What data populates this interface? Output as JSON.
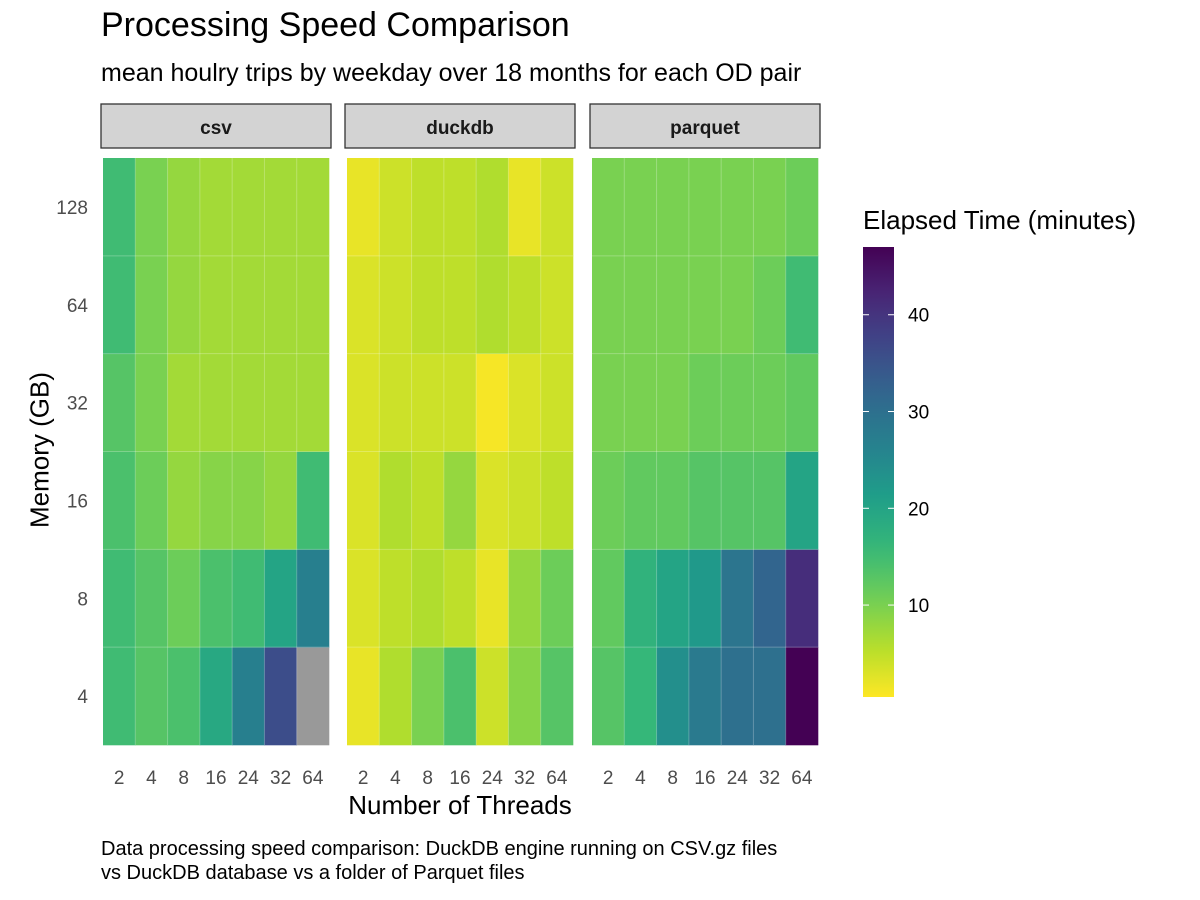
{
  "title": "Processing Speed Comparison",
  "subtitle": "mean houlry trips by weekday over 18 months for each OD pair",
  "caption_lines": [
    "Data processing speed comparison: DuckDB engine running on CSV.gz files",
    "vs DuckDB database vs a folder of Parquet files"
  ],
  "chart_data": {
    "type": "heatmap",
    "xlabel": "Number of Threads",
    "ylabel": "Memory (GB)",
    "x_categories": [
      "2",
      "4",
      "8",
      "16",
      "24",
      "32",
      "64"
    ],
    "y_categories": [
      "4",
      "8",
      "16",
      "32",
      "64",
      "128"
    ],
    "legend_title": "Elapsed Time (minutes)",
    "colorbar_ticks": [
      10,
      20,
      30,
      40
    ],
    "color_range": [
      0.5,
      47
    ],
    "colormap": "viridis (reversed: low = yellow, high = purple)",
    "missing_color": "#999999",
    "facets": [
      {
        "name": "csv",
        "values": [
          [
            15,
            13,
            14,
            19,
            27,
            36,
            null
          ],
          [
            15,
            13,
            11,
            14,
            15,
            20,
            27
          ],
          [
            14,
            11,
            8,
            9,
            9,
            8,
            15
          ],
          [
            13,
            10,
            7,
            7,
            7,
            7,
            7
          ],
          [
            15,
            10,
            8,
            7,
            7,
            7,
            7
          ],
          [
            15,
            10,
            8,
            7,
            7,
            7,
            7
          ]
        ]
      },
      {
        "name": "duckdb",
        "values": [
          [
            2,
            6,
            10,
            14,
            4,
            9,
            13
          ],
          [
            3,
            5,
            6,
            5,
            2,
            8,
            11
          ],
          [
            3,
            6,
            5,
            8,
            3,
            4,
            5
          ],
          [
            3,
            4,
            4,
            4,
            1,
            3,
            4
          ],
          [
            3,
            4,
            5,
            5,
            6,
            5,
            4
          ],
          [
            2,
            4,
            5,
            5,
            6,
            2,
            4
          ]
        ]
      },
      {
        "name": "parquet",
        "values": [
          [
            13,
            16,
            24,
            28,
            30,
            30,
            47
          ],
          [
            12,
            17,
            20,
            22,
            29,
            32,
            41
          ],
          [
            11,
            12,
            12,
            13,
            13,
            13,
            20
          ],
          [
            10,
            10,
            10,
            11,
            11,
            11,
            12
          ],
          [
            10,
            10,
            10,
            10,
            10,
            11,
            15
          ],
          [
            10,
            10,
            10,
            10,
            10,
            10,
            11
          ]
        ]
      }
    ]
  }
}
